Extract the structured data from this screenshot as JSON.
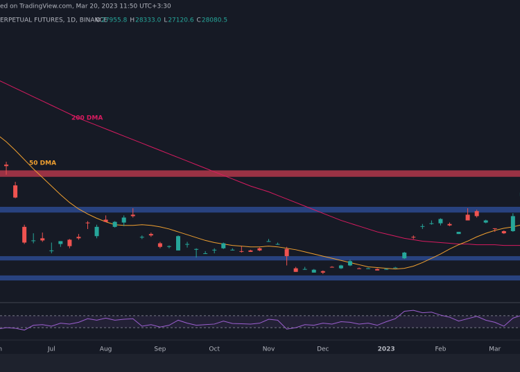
{
  "header": {
    "source": "ed on TradingView.com, Mar 20, 2023 11:50 UTC+3:30",
    "symbol": "ERPETUAL FUTURES, 1D, BINANCE",
    "ohlc": [
      {
        "label": "O",
        "value": "27955.8"
      },
      {
        "label": "H",
        "value": "28333.0"
      },
      {
        "label": "L",
        "value": "27120.6"
      },
      {
        "label": "C",
        "value": "28080.5"
      }
    ]
  },
  "chart_data": {
    "type": "candlestick",
    "categories": [
      "Jun",
      null,
      null,
      null,
      null,
      null,
      "Jul",
      null,
      null,
      null,
      null,
      null,
      "Aug",
      null,
      null,
      null,
      null,
      null,
      "Sep",
      null,
      null,
      null,
      null,
      null,
      "Oct",
      null,
      null,
      null,
      null,
      null,
      "Nov",
      null,
      null,
      null,
      null,
      null,
      "Dec",
      null,
      null,
      null,
      null,
      null,
      null,
      "2023",
      null,
      null,
      null,
      null,
      null,
      "Feb",
      null,
      null,
      null,
      null,
      null,
      "Mar",
      null,
      null,
      null
    ],
    "open": [
      31700,
      31300,
      28400,
      22600,
      20700,
      21000,
      19300,
      20200,
      20800,
      21200,
      23200,
      21300,
      23600,
      22600,
      23200,
      24300,
      21100,
      21600,
      20300,
      19800,
      19300,
      20200,
      19400,
      18900,
      19400,
      19600,
      19400,
      19200,
      19300,
      19600,
      20600,
      20200,
      19500,
      16800,
      16700,
      16200,
      16400,
      17000,
      16800,
      17200,
      16800,
      16800,
      16700,
      16600,
      16900,
      18200,
      21200,
      22700,
      23000,
      23100,
      23000,
      21600,
      24300,
      24800,
      23200,
      22400,
      22000,
      22000,
      26900
    ],
    "high": [
      31900,
      31700,
      28900,
      22900,
      21700,
      21800,
      20400,
      20600,
      20900,
      21600,
      23400,
      22900,
      24200,
      23400,
      24200,
      25200,
      21400,
      21800,
      20500,
      20000,
      21400,
      20500,
      19600,
      19200,
      19600,
      20400,
      19600,
      19900,
      19400,
      19700,
      20900,
      20400,
      19800,
      17000,
      17000,
      16700,
      16500,
      17100,
      17300,
      18000,
      16900,
      16900,
      16800,
      16800,
      17000,
      19100,
      21400,
      23000,
      23500,
      23800,
      23200,
      21900,
      25200,
      25000,
      23600,
      22400,
      22100,
      24500,
      27700
    ],
    "low": [
      29500,
      29900,
      26600,
      20200,
      20300,
      20500,
      18900,
      19800,
      19600,
      20800,
      22300,
      21000,
      23300,
      22500,
      22700,
      23900,
      20900,
      21200,
      19600,
      19600,
      19300,
      19700,
      18300,
      18800,
      18900,
      19500,
      19300,
      19000,
      19100,
      19200,
      20500,
      20100,
      17200,
      16300,
      16600,
      16200,
      16000,
      16900,
      16700,
      17100,
      16700,
      16800,
      16500,
      16600,
      16900,
      18100,
      20900,
      22300,
      22900,
      22800,
      22700,
      21600,
      23600,
      23900,
      23100,
      21900,
      21600,
      21900,
      26600
    ],
    "close": [
      29800,
      31100,
      26700,
      20400,
      20700,
      20700,
      19300,
      20600,
      19900,
      21000,
      23100,
      22600,
      23300,
      23300,
      23900,
      24100,
      21200,
      21400,
      19800,
      19900,
      21300,
      20200,
      19500,
      18900,
      19400,
      20300,
      19400,
      19100,
      19100,
      19300,
      20600,
      20200,
      18500,
      16300,
      16700,
      16600,
      16200,
      16900,
      17200,
      17800,
      16700,
      16800,
      16500,
      16700,
      16900,
      19000,
      21100,
      22700,
      23100,
      23700,
      22800,
      21900,
      23500,
      24100,
      23500,
      22300,
      21700,
      24100,
      27400
    ],
    "up_color": "#26a69a",
    "down_color": "#ef5350",
    "ylim": [
      12100,
      50450
    ],
    "zones": [
      {
        "color": "#b2374a",
        "range": [
          29600,
          30500
        ]
      },
      {
        "color": "#2b4a8f",
        "range": [
          24600,
          25400
        ]
      },
      {
        "color": "#2b4a8f",
        "range": [
          17900,
          18500
        ]
      },
      {
        "color": "#2b4a8f",
        "range": [
          15100,
          15800
        ]
      }
    ],
    "lines": [
      {
        "name": "200 DMA",
        "color": "#d81b60",
        "values": [
          43200,
          42600,
          42000,
          41400,
          40800,
          40200,
          39600,
          39000,
          38400,
          37800,
          37300,
          36800,
          36300,
          35800,
          35300,
          34800,
          34300,
          33800,
          33300,
          32800,
          32300,
          31800,
          31300,
          30800,
          30300,
          29800,
          29300,
          28800,
          28300,
          27900,
          27500,
          27000,
          26500,
          26000,
          25500,
          25000,
          24500,
          24000,
          23500,
          23100,
          22700,
          22300,
          21900,
          21600,
          21300,
          21000,
          20800,
          20600,
          20500,
          20400,
          20300,
          20200,
          20200,
          20100,
          20100,
          20100,
          20000,
          20000,
          20000
        ]
      },
      {
        "name": "50 DMA",
        "color": "#f0a030",
        "values": [
          35500,
          34500,
          33300,
          32000,
          30700,
          29500,
          28300,
          27100,
          26000,
          25100,
          24400,
          23800,
          23300,
          22900,
          22800,
          22800,
          22900,
          22800,
          22600,
          22300,
          21900,
          21500,
          21100,
          20700,
          20400,
          20200,
          20000,
          19900,
          19800,
          19800,
          19900,
          19800,
          19600,
          19400,
          19100,
          18800,
          18500,
          18200,
          17900,
          17600,
          17300,
          17000,
          16900,
          16800,
          16700,
          16800,
          17100,
          17600,
          18200,
          18800,
          19500,
          20100,
          20600,
          21200,
          21700,
          22100,
          22400,
          22600,
          22900
        ]
      }
    ],
    "rsi": {
      "color": "#9c5fd0",
      "ylim": [
        0,
        100
      ],
      "bands": [
        30,
        70
      ],
      "values": [
        25,
        30,
        28,
        22,
        38,
        40,
        35,
        45,
        42,
        48,
        60,
        55,
        62,
        55,
        58,
        60,
        35,
        40,
        32,
        38,
        55,
        45,
        38,
        40,
        42,
        52,
        44,
        43,
        42,
        45,
        58,
        55,
        25,
        30,
        40,
        38,
        45,
        42,
        50,
        48,
        42,
        45,
        38,
        50,
        60,
        85,
        88,
        80,
        82,
        72,
        65,
        52,
        60,
        68,
        55,
        48,
        35,
        62,
        72
      ]
    }
  }
}
